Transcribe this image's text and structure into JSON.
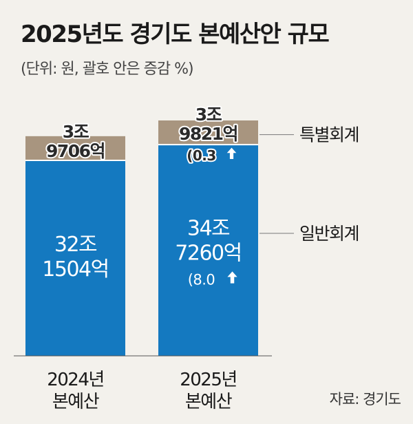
{
  "title": "2025년도 경기도 본예산안 규모",
  "subtitle": "(단위: 원, 괄호 안은 증감 %)",
  "source": "자료: 경기도",
  "colors": {
    "general": "#1479c0",
    "special": "#a8957f",
    "background": "#f3f1ec",
    "text": "#222222"
  },
  "chart_data": {
    "type": "bar",
    "stacked": true,
    "categories": [
      "2024년 본예산",
      "2025년 본예산"
    ],
    "category_labels": [
      {
        "line1": "2024년",
        "line2": "본예산"
      },
      {
        "line1": "2025년",
        "line2": "본예산"
      }
    ],
    "series": [
      {
        "name": "일반회계",
        "color": "#1479c0",
        "values": [
          321504,
          347260
        ],
        "labels": [
          {
            "line1": "32조",
            "line2": "1504억",
            "change": ""
          },
          {
            "line1": "34조",
            "line2": "7260억",
            "change": "(8.0"
          }
        ]
      },
      {
        "name": "특별회계",
        "color": "#a8957f",
        "values": [
          39706,
          39821
        ],
        "labels": [
          {
            "line1": "3조",
            "line2": "9706억",
            "change": ""
          },
          {
            "line1": "3조",
            "line2": "9821억",
            "change": "(0.3"
          }
        ]
      }
    ],
    "unit": "억원",
    "legend": [
      "특별회계",
      "일반회계"
    ],
    "legend_position": "right"
  }
}
